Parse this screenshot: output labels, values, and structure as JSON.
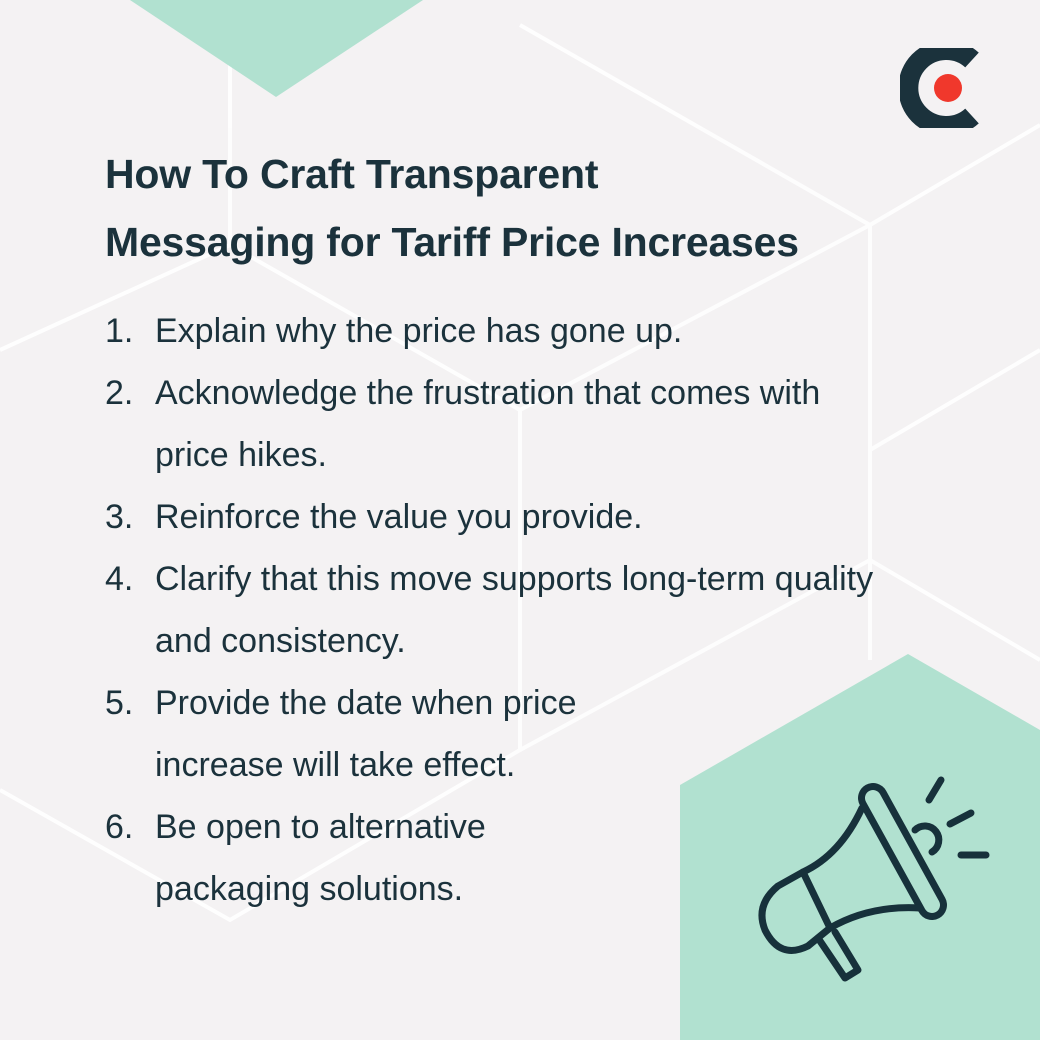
{
  "title_lines": [
    "How To Craft Transparent",
    "Messaging for Tariff Price Increases"
  ],
  "items": [
    {
      "num": "1.",
      "text": "Explain why the price has gone up."
    },
    {
      "num": "2.",
      "text": "Acknowledge the frustration that comes with price hikes."
    },
    {
      "num": "3.",
      "text": "Reinforce the value you provide."
    },
    {
      "num": "4.",
      "text": "Clarify that this move supports long-term quality and consistency."
    },
    {
      "num": "5.",
      "text": "Provide the date when price increase will take effect."
    },
    {
      "num": "6.",
      "text": "Be open to alternative packaging solutions."
    }
  ],
  "icons": {
    "logo": "brand-c-logo",
    "illustration": "megaphone-icon"
  },
  "colors": {
    "background": "#f4f2f3",
    "accent_green": "#b1e1d0",
    "text": "#1b323c",
    "logo_dot": "#f0382c"
  }
}
